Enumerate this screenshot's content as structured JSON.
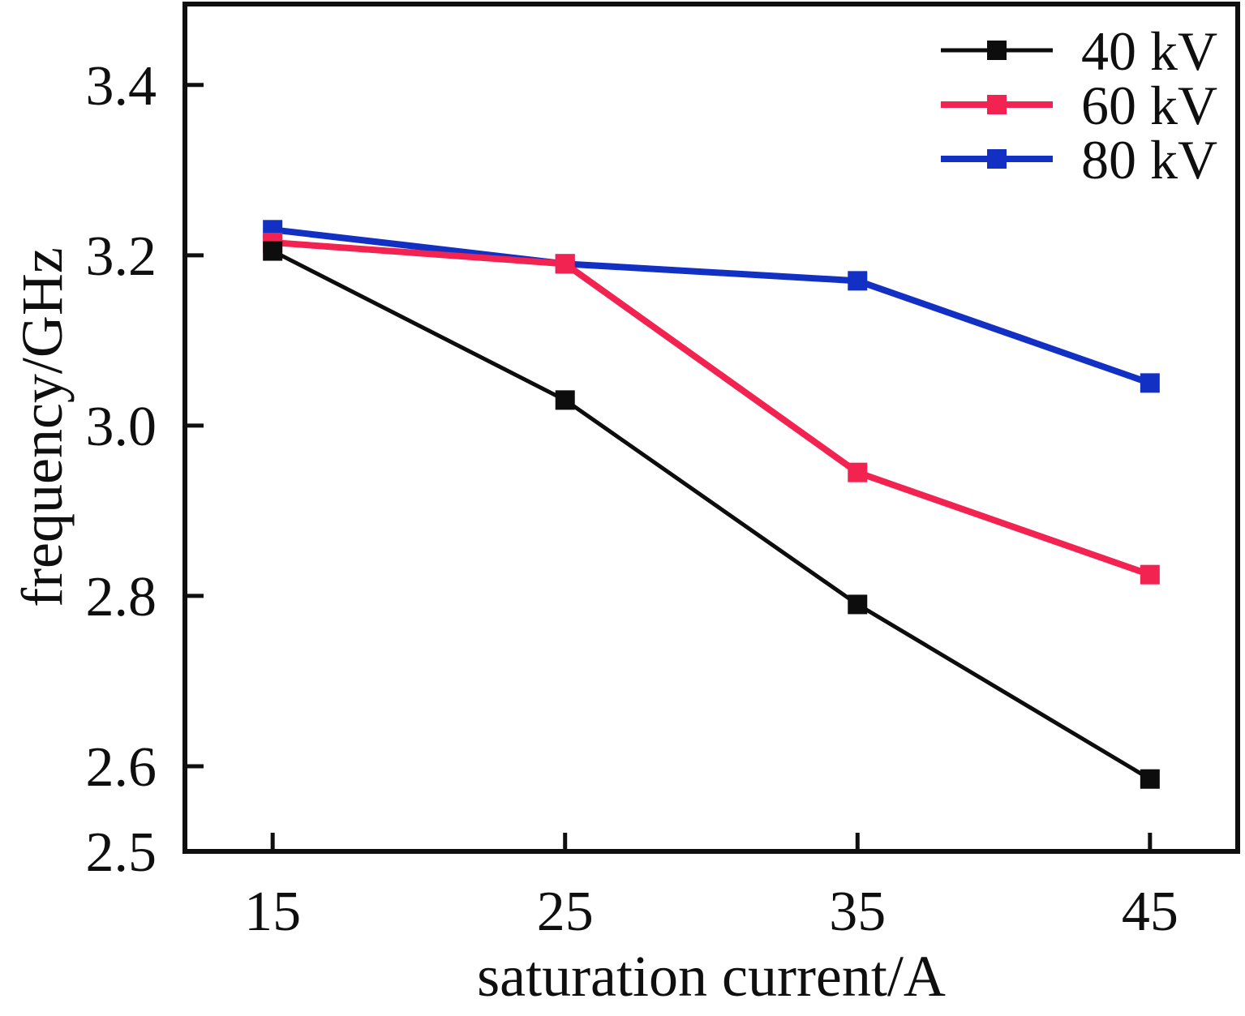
{
  "chart_data": {
    "type": "line",
    "title": "",
    "xlabel": "saturation current/A",
    "ylabel": "frequency/GHz",
    "x": [
      15,
      25,
      35,
      45
    ],
    "x_ticks": [
      "15",
      "25",
      "35",
      "45"
    ],
    "y_ticks": [
      2.5,
      2.6,
      2.8,
      3.0,
      3.2,
      3.4
    ],
    "xlim": [
      12,
      48
    ],
    "ylim": [
      2.5,
      3.495
    ],
    "grid": false,
    "marker": "square",
    "legend_position": "top-right-inside",
    "frame_color": "#0f0f0f",
    "series": [
      {
        "name": "40 kV",
        "color": "#0d0d0d",
        "line_width": 5,
        "values": [
          3.205,
          3.03,
          2.79,
          2.585
        ]
      },
      {
        "name": "60 kV",
        "color": "#f22350",
        "line_width": 8,
        "values": [
          3.215,
          3.19,
          2.945,
          2.825
        ]
      },
      {
        "name": "80 kV",
        "color": "#1230c3",
        "line_width": 8,
        "values": [
          3.23,
          3.19,
          3.17,
          3.05
        ]
      }
    ]
  }
}
